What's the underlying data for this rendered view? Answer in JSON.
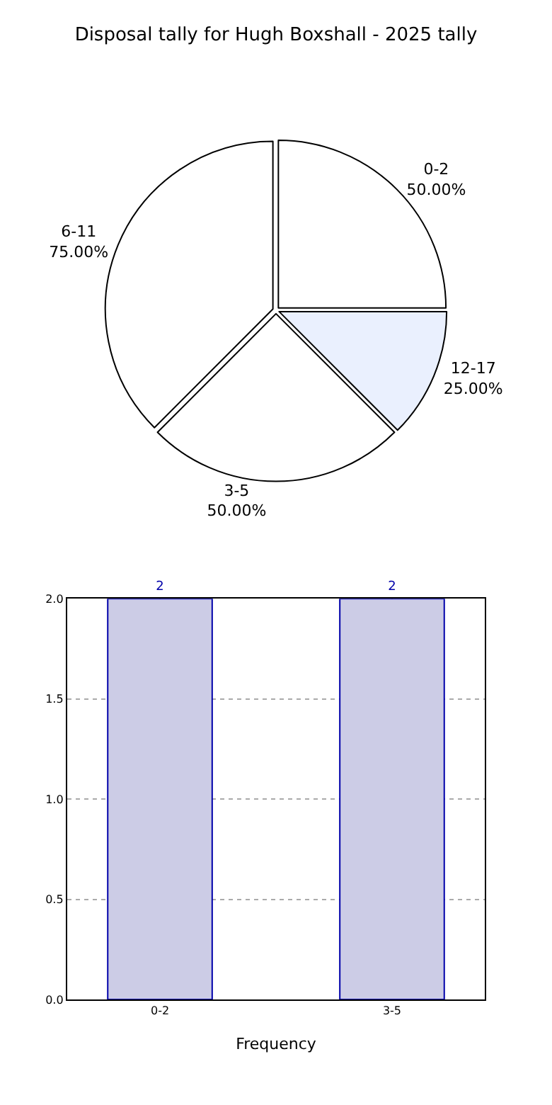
{
  "chart_data": [
    {
      "type": "pie",
      "title": "Disposal tally for Hugh Boxshall - 2025 tally",
      "categories": [
        "0-2",
        "6-11",
        "3-5",
        "12-17"
      ],
      "values": [
        50,
        75,
        50,
        25
      ],
      "value_labels": [
        "50.00%",
        "75.00%",
        "50.00%",
        "25.00%"
      ],
      "colors": [
        "#ffffff",
        "#ffffff",
        "#ffffff",
        "#eaf0fe"
      ]
    },
    {
      "type": "bar",
      "categories": [
        "0-2",
        "3-5"
      ],
      "values": [
        2,
        2
      ],
      "color": "#cccce6",
      "xlabel": "Frequency",
      "ylim": [
        0,
        2
      ],
      "yticks": [
        {
          "value": 0,
          "label": "0.0"
        },
        {
          "value": 0.5,
          "label": "0.5"
        },
        {
          "value": 1,
          "label": "1.0"
        },
        {
          "value": 1.5,
          "label": "1.5"
        },
        {
          "value": 2,
          "label": "2.0"
        }
      ],
      "grid": true,
      "data_labels": true
    }
  ]
}
